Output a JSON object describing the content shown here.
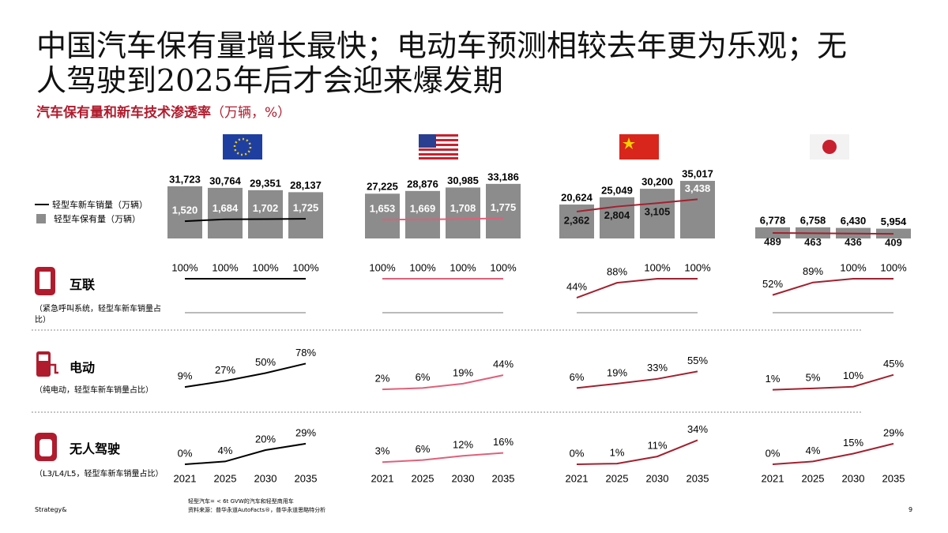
{
  "title": [
    "中国汽车保有量增长最快；电动车预测相较去年更为乐观；无",
    "人驾驶到2025年后才会迎来爆发期"
  ],
  "subtitle": "汽车保有量和新车技术渗透率",
  "subtitle_unit": "（万辆，%）",
  "legend": [
    "轻型车新车销量（万辆）",
    "轻型车保有量（万辆）"
  ],
  "years": [
    "2021",
    "2025",
    "2030",
    "2035"
  ],
  "ylim": [
    0,
    36000
  ],
  "y2lim": [
    0,
    5200
  ],
  "rows": [
    {
      "label": "互联",
      "note": "（紧急呼叫系统，轻型车新车销量占比）",
      "ylim": [
        0,
        100
      ]
    },
    {
      "label": "电动",
      "note": "（纯电动，轻型车新车销量占比）",
      "ylim": [
        0,
        100
      ]
    },
    {
      "label": "无人驾驶",
      "note": "（L3/L4/L5，轻型车新车销量占比）",
      "ylim": [
        0,
        40
      ]
    }
  ],
  "chart_data": [
    {
      "type": "combo",
      "color": "#000000",
      "stock": {
        "values": [
          31723,
          30764,
          29351,
          28137
        ],
        "value_labels": [
          "31,723",
          "30,764",
          "29,351",
          "28,137"
        ]
      },
      "sales": {
        "values": [
          1520,
          1684,
          1702,
          1725
        ],
        "value_labels": [
          "1,520",
          "1,684",
          "1,702",
          "1,725"
        ]
      },
      "rates": [
        {
          "values": [
            100,
            100,
            100,
            100
          ],
          "value_labels": [
            "100%",
            "100%",
            "100%",
            "100%"
          ]
        },
        {
          "values": [
            9,
            27,
            50,
            78
          ],
          "value_labels": [
            "9%",
            "27%",
            "50%",
            "78%"
          ]
        },
        {
          "values": [
            0,
            4,
            20,
            29
          ],
          "value_labels": [
            "0%",
            "4%",
            "20%",
            "29%"
          ]
        }
      ]
    },
    {
      "type": "combo",
      "color": "#e0607a",
      "stock": {
        "values": [
          27225,
          28876,
          30985,
          33186
        ],
        "value_labels": [
          "27,225",
          "28,876",
          "30,985",
          "33,186"
        ]
      },
      "sales": {
        "values": [
          1653,
          1669,
          1708,
          1775
        ],
        "value_labels": [
          "1,653",
          "1,669",
          "1,708",
          "1,775"
        ]
      },
      "rates": [
        {
          "values": [
            100,
            100,
            100,
            100
          ],
          "value_labels": [
            "100%",
            "100%",
            "100%",
            "100%"
          ]
        },
        {
          "values": [
            2,
            6,
            19,
            44
          ],
          "value_labels": [
            "2%",
            "6%",
            "19%",
            "44%"
          ]
        },
        {
          "values": [
            3,
            6,
            12,
            16
          ],
          "value_labels": [
            "3%",
            "6%",
            "12%",
            "16%"
          ]
        }
      ]
    },
    {
      "type": "combo",
      "color": "#a3212f",
      "stock": {
        "values": [
          20624,
          25049,
          30200,
          35017
        ],
        "value_labels": [
          "20,624",
          "25,049",
          "30,200",
          "35,017"
        ]
      },
      "sales": {
        "values": [
          2362,
          2804,
          3105,
          3438
        ],
        "value_labels": [
          "2,362",
          "2,804",
          "3,105",
          "3,438"
        ]
      },
      "rates": [
        {
          "values": [
            44,
            88,
            100,
            100
          ],
          "value_labels": [
            "44%",
            "88%",
            "100%",
            "100%"
          ]
        },
        {
          "values": [
            6,
            19,
            33,
            55
          ],
          "value_labels": [
            "6%",
            "19%",
            "33%",
            "55%"
          ]
        },
        {
          "values": [
            0,
            1,
            11,
            34
          ],
          "value_labels": [
            "0%",
            "1%",
            "11%",
            "34%"
          ]
        }
      ]
    },
    {
      "type": "combo",
      "color": "#a3212f",
      "stock": {
        "values": [
          6778,
          6758,
          6430,
          5954
        ],
        "value_labels": [
          "6,778",
          "6,758",
          "6,430",
          "5,954"
        ]
      },
      "sales": {
        "values": [
          489,
          463,
          436,
          409
        ],
        "value_labels": [
          "489",
          "463",
          "436",
          "409"
        ]
      },
      "rates": [
        {
          "values": [
            52,
            89,
            100,
            100
          ],
          "value_labels": [
            "52%",
            "89%",
            "100%",
            "100%"
          ]
        },
        {
          "values": [
            1,
            5,
            10,
            45
          ],
          "value_labels": [
            "1%",
            "5%",
            "10%",
            "45%"
          ]
        },
        {
          "values": [
            0,
            4,
            15,
            29
          ],
          "value_labels": [
            "0%",
            "4%",
            "15%",
            "29%"
          ]
        }
      ]
    }
  ],
  "footnotes": [
    "轻型汽车= < 6t GVW的汽车和轻型商用车",
    "资料来源：普华永道AutoFacts®，普华永道思略特分析"
  ],
  "brand": "Strategy&",
  "page": "9"
}
